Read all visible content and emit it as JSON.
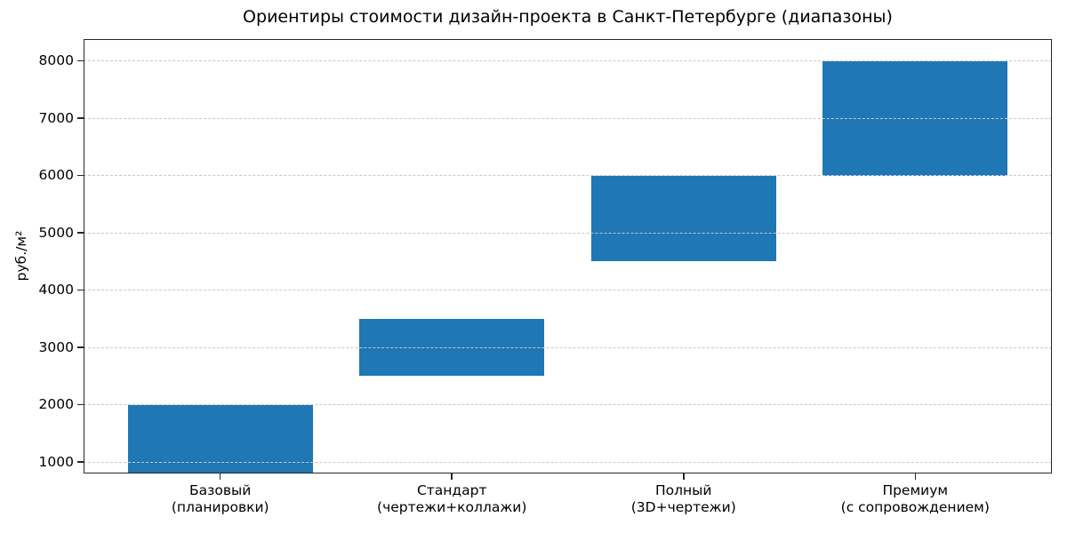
{
  "chart_data": {
    "type": "bar",
    "subtype": "floating-range-bars",
    "title": "Ориентиры стоимости дизайн-проекта в Санкт-Петербурге (диапазоны)",
    "ylabel": "руб./м²",
    "xlabel": "",
    "categories": [
      "Базовый\n(планировки)",
      "Стандарт\n(чертежи+коллажи)",
      "Полный\n(3D+чертежи)",
      "Премиум\n(с сопровождением)"
    ],
    "series": [
      {
        "low": [
          800,
          2500,
          4500,
          6000
        ],
        "high": [
          2000,
          3500,
          6000,
          8000
        ]
      }
    ],
    "yticks": [
      1000,
      2000,
      3000,
      4000,
      5000,
      6000,
      7000,
      8000
    ],
    "ylim": [
      800,
      8380
    ],
    "xlim": [
      -0.59,
      3.59
    ],
    "bar_width_ratio": 0.8,
    "bar_color": "#1f77b4",
    "grid": {
      "axis": "y",
      "style": "dashed",
      "color": "#c8c8c8",
      "drawn_over_bars": true
    },
    "legend": "none",
    "background": "#ffffff"
  }
}
